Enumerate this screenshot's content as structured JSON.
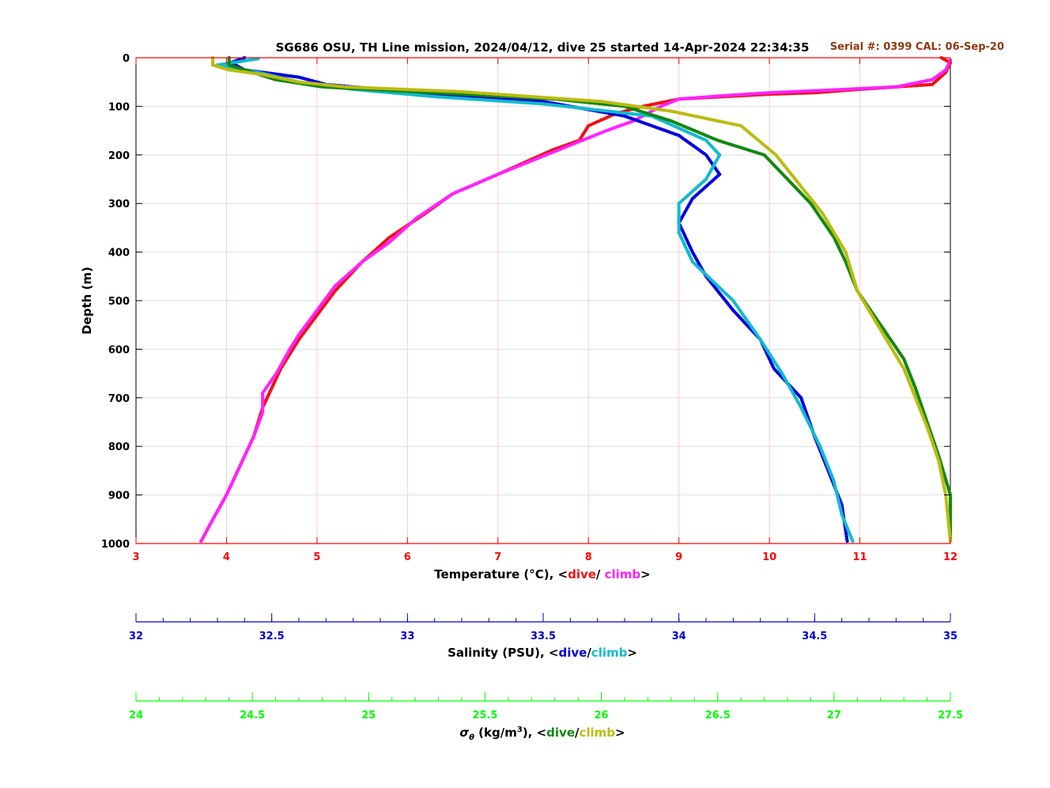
{
  "chart_data": {
    "type": "scatter",
    "title": "SG686 OSU, TH Line mission, 2024/04/12, dive 25 started 14-Apr-2024 22:34:35",
    "annotation": "Serial #: 0399  CAL: 06-Sep-20",
    "colors": {
      "temp_axis": "#ff0000",
      "sal_axis": "#0000cc",
      "sigma_axis": "#00ff00",
      "annotation": "#8b3a0f",
      "temp_dive": "#ee1111",
      "temp_climb": "#ff22ff",
      "sal_dive": "#0000dd",
      "sal_climb": "#11bbcc",
      "sigma_dive": "#118811",
      "sigma_climb": "#bbbb11"
    },
    "y_axis": {
      "label": "Depth (m)",
      "range": [
        0,
        1000
      ],
      "reversed": true,
      "ticks": [
        "0",
        "100",
        "200",
        "300",
        "400",
        "500",
        "600",
        "700",
        "800",
        "900",
        "1000"
      ]
    },
    "temperature_axis": {
      "range": [
        3,
        12
      ],
      "ticks": [
        "3",
        "4",
        "5",
        "6",
        "7",
        "8",
        "9",
        "10",
        "11",
        "12"
      ],
      "label_prefix": "Temperature (°C), <",
      "label_dive": "dive",
      "label_sep": "/ ",
      "label_climb": "climb",
      "label_suffix": ">"
    },
    "salinity_axis": {
      "range": [
        32,
        35
      ],
      "ticks": [
        "32",
        "32.5",
        "33",
        "33.5",
        "34",
        "34.5",
        "35"
      ],
      "label_prefix": "Salinity (PSU), <",
      "label_dive": "dive",
      "label_sep": "/",
      "label_climb": "climb",
      "label_suffix": ">"
    },
    "sigma_axis": {
      "range": [
        24,
        27.5
      ],
      "ticks": [
        "24",
        "24.5",
        "25",
        "25.5",
        "26",
        "26.5",
        "27",
        "27.5"
      ],
      "label_sym": "σ",
      "label_sub": "θ",
      "label_mid": " (kg/m",
      "label_sup": "3",
      "label_after": "), <",
      "label_dive": "dive",
      "label_sep": "/",
      "label_climb": "climb",
      "label_suffix": ">"
    },
    "grid": true,
    "series": [
      {
        "name": "dive",
        "variable": "temperature",
        "color_key": "temp_dive",
        "axis": "temp",
        "points": [
          [
            11.9,
            0
          ],
          [
            12.0,
            10
          ],
          [
            11.95,
            30
          ],
          [
            11.8,
            55
          ],
          [
            11.0,
            65
          ],
          [
            10.5,
            72
          ],
          [
            10.0,
            75
          ],
          [
            9.5,
            80
          ],
          [
            9.0,
            85
          ],
          [
            8.6,
            100
          ],
          [
            8.3,
            115
          ],
          [
            8.0,
            140
          ],
          [
            7.9,
            170
          ],
          [
            7.6,
            190
          ],
          [
            7.0,
            240
          ],
          [
            6.5,
            280
          ],
          [
            6.2,
            320
          ],
          [
            6.0,
            345
          ],
          [
            5.8,
            370
          ],
          [
            5.5,
            420
          ],
          [
            5.2,
            480
          ],
          [
            5.0,
            530
          ],
          [
            4.8,
            580
          ],
          [
            4.6,
            640
          ],
          [
            4.5,
            680
          ],
          [
            4.4,
            720
          ],
          [
            4.3,
            780
          ],
          [
            4.15,
            840
          ],
          [
            4.0,
            900
          ],
          [
            3.85,
            950
          ],
          [
            3.72,
            995
          ]
        ]
      },
      {
        "name": "climb",
        "variable": "temperature",
        "color_key": "temp_climb",
        "axis": "temp",
        "points": [
          [
            12.0,
            5
          ],
          [
            11.95,
            25
          ],
          [
            11.8,
            45
          ],
          [
            11.4,
            60
          ],
          [
            10.5,
            68
          ],
          [
            10.0,
            72
          ],
          [
            9.5,
            78
          ],
          [
            9.0,
            85
          ],
          [
            8.8,
            100
          ],
          [
            8.5,
            130
          ],
          [
            8.2,
            150
          ],
          [
            7.8,
            180
          ],
          [
            7.4,
            210
          ],
          [
            7.0,
            240
          ],
          [
            6.5,
            280
          ],
          [
            6.1,
            330
          ],
          [
            5.8,
            380
          ],
          [
            5.5,
            420
          ],
          [
            5.2,
            470
          ],
          [
            5.0,
            520
          ],
          [
            4.8,
            570
          ],
          [
            4.7,
            600
          ],
          [
            4.55,
            650
          ],
          [
            4.4,
            690
          ],
          [
            4.4,
            730
          ],
          [
            4.3,
            780
          ],
          [
            4.15,
            840
          ],
          [
            4.0,
            900
          ],
          [
            3.85,
            950
          ],
          [
            3.72,
            995
          ]
        ]
      },
      {
        "name": "dive",
        "variable": "salinity",
        "color_key": "sal_dive",
        "axis": "sal",
        "points": [
          [
            32.4,
            0
          ],
          [
            32.35,
            10
          ],
          [
            32.4,
            25
          ],
          [
            32.6,
            40
          ],
          [
            32.7,
            55
          ],
          [
            33.0,
            70
          ],
          [
            33.5,
            90
          ],
          [
            33.8,
            120
          ],
          [
            34.0,
            160
          ],
          [
            34.1,
            200
          ],
          [
            34.15,
            240
          ],
          [
            34.05,
            290
          ],
          [
            34.0,
            340
          ],
          [
            34.05,
            400
          ],
          [
            34.1,
            450
          ],
          [
            34.2,
            520
          ],
          [
            34.3,
            580
          ],
          [
            34.35,
            640
          ],
          [
            34.45,
            700
          ],
          [
            34.5,
            780
          ],
          [
            34.55,
            850
          ],
          [
            34.6,
            920
          ],
          [
            34.62,
            995
          ]
        ]
      },
      {
        "name": "climb",
        "variable": "salinity",
        "color_key": "sal_climb",
        "axis": "sal",
        "points": [
          [
            32.45,
            2
          ],
          [
            32.3,
            15
          ],
          [
            32.45,
            30
          ],
          [
            32.6,
            50
          ],
          [
            32.8,
            65
          ],
          [
            33.1,
            80
          ],
          [
            33.5,
            95
          ],
          [
            33.9,
            120
          ],
          [
            34.1,
            170
          ],
          [
            34.15,
            200
          ],
          [
            34.1,
            250
          ],
          [
            34.0,
            300
          ],
          [
            34.0,
            360
          ],
          [
            34.05,
            420
          ],
          [
            34.2,
            500
          ],
          [
            34.3,
            580
          ],
          [
            34.38,
            650
          ],
          [
            34.45,
            720
          ],
          [
            34.52,
            800
          ],
          [
            34.57,
            870
          ],
          [
            34.6,
            940
          ],
          [
            34.64,
            995
          ]
        ]
      },
      {
        "name": "dive",
        "variable": "sigma",
        "color_key": "sigma_dive",
        "axis": "sig",
        "points": [
          [
            24.4,
            0
          ],
          [
            24.4,
            15
          ],
          [
            24.5,
            30
          ],
          [
            24.6,
            45
          ],
          [
            24.8,
            60
          ],
          [
            25.2,
            70
          ],
          [
            25.8,
            85
          ],
          [
            26.1,
            100
          ],
          [
            26.3,
            130
          ],
          [
            26.5,
            170
          ],
          [
            26.7,
            200
          ],
          [
            26.8,
            250
          ],
          [
            26.9,
            300
          ],
          [
            27.0,
            370
          ],
          [
            27.05,
            420
          ],
          [
            27.1,
            480
          ],
          [
            27.2,
            550
          ],
          [
            27.3,
            620
          ],
          [
            27.35,
            680
          ],
          [
            27.4,
            750
          ],
          [
            27.45,
            820
          ],
          [
            27.5,
            900
          ],
          [
            27.5,
            995
          ]
        ]
      },
      {
        "name": "climb",
        "variable": "sigma",
        "color_key": "sigma_climb",
        "axis": "sig",
        "points": [
          [
            24.33,
            0
          ],
          [
            24.33,
            15
          ],
          [
            24.4,
            25
          ],
          [
            24.55,
            35
          ],
          [
            24.7,
            50
          ],
          [
            24.9,
            60
          ],
          [
            25.4,
            70
          ],
          [
            26.0,
            90
          ],
          [
            26.3,
            110
          ],
          [
            26.6,
            140
          ],
          [
            26.75,
            200
          ],
          [
            26.85,
            260
          ],
          [
            26.95,
            320
          ],
          [
            27.05,
            400
          ],
          [
            27.1,
            480
          ],
          [
            27.2,
            560
          ],
          [
            27.3,
            640
          ],
          [
            27.35,
            700
          ],
          [
            27.4,
            760
          ],
          [
            27.45,
            830
          ],
          [
            27.48,
            900
          ],
          [
            27.5,
            995
          ]
        ]
      }
    ]
  }
}
